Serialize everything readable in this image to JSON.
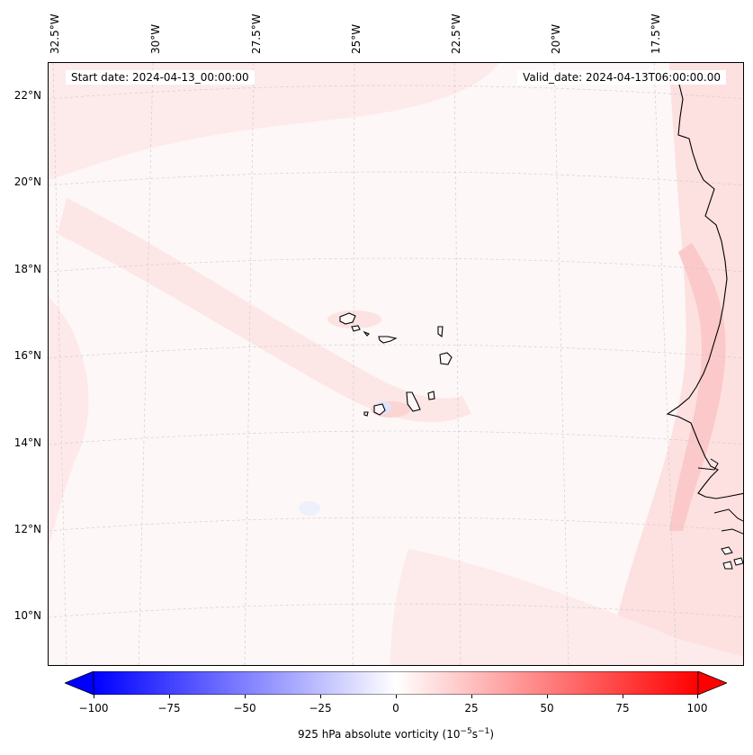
{
  "map": {
    "start_date": "Start date: 2024-04-13_00:00:00",
    "valid_date": "Valid_date: 2024-04-13T06:00:00.00",
    "lon_labels": [
      "32.5°W",
      "30°W",
      "27.5°W",
      "25°W",
      "22.5°W",
      "20°W",
      "17.5°W"
    ],
    "lat_labels": [
      "22°N",
      "20°N",
      "18°N",
      "16°N",
      "14°N",
      "12°N",
      "10°N"
    ],
    "field": "925 hPa absolute vorticity",
    "background_color": "#fdf7f7",
    "coastline_color": "#000000",
    "gridline_style": "dashed-light-grey"
  },
  "colorbar": {
    "tick_labels": [
      "−100",
      "−75",
      "−50",
      "−25",
      "0",
      "25",
      "50",
      "75",
      "100"
    ],
    "tick_values": [
      -100,
      -75,
      -50,
      -25,
      0,
      25,
      50,
      75,
      100
    ],
    "range": [
      -100,
      100
    ],
    "extend": "both",
    "colormap": "bwr",
    "label_main": "925 hPa absolute vorticity (10",
    "label_exp1": "−5",
    "label_mid": "s",
    "label_exp2": "−1",
    "label_end": ")"
  }
}
